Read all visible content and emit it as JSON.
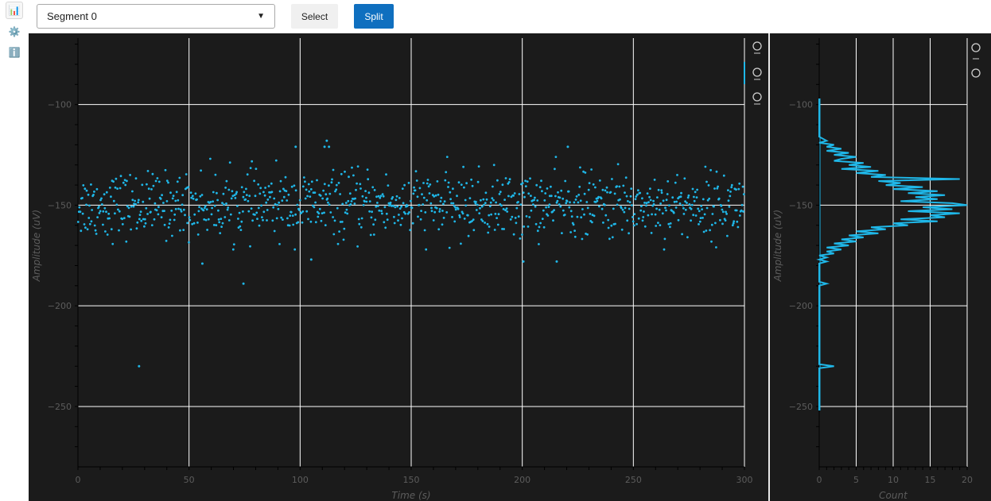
{
  "sidebar": {
    "items": [
      {
        "name": "chart",
        "glyph": "📊"
      },
      {
        "name": "settings",
        "glyph": "⚙️"
      },
      {
        "name": "info",
        "glyph": "ℹ️"
      }
    ]
  },
  "toolbar": {
    "segment_selected": "Segment 0",
    "select_label": "Select",
    "split_label": "Split"
  },
  "colors": {
    "plot_bg": "#1b1b1b",
    "grid": "#ffffff",
    "marker": "#1fb7e8",
    "tick_text": "#5c5c5c",
    "split_button": "#0f6fbf"
  },
  "plot_tools": {
    "scatter": [
      "wheel-zoom-icon",
      "box-zoom-icon",
      "reset-icon"
    ],
    "histogram": [
      "box-zoom-icon",
      "reset-icon"
    ]
  },
  "chart_data": [
    {
      "type": "scatter",
      "xlabel": "Time (s)",
      "ylabel": "Amplitude (uV)",
      "xlim": [
        0,
        300
      ],
      "ylim": [
        -280,
        -67
      ],
      "xticks": [
        0,
        50,
        100,
        150,
        200,
        250,
        300
      ],
      "yticks": [
        -100,
        -150,
        -200,
        -250
      ],
      "grid": true,
      "n_points": 1000,
      "center": -150,
      "spread": 8,
      "outliers": [
        {
          "x": 27.5,
          "y": -230
        },
        {
          "x": 74.5,
          "y": -189
        },
        {
          "x": 56.0,
          "y": -179
        },
        {
          "x": 112.0,
          "y": -118
        },
        {
          "x": 111.0,
          "y": -121
        },
        {
          "x": 113.0,
          "y": -121
        },
        {
          "x": 98.0,
          "y": -121
        },
        {
          "x": 220.5,
          "y": -121
        },
        {
          "x": 105.0,
          "y": -177
        },
        {
          "x": 200.5,
          "y": -178
        },
        {
          "x": 215.5,
          "y": -178
        }
      ]
    },
    {
      "type": "line",
      "orientation": "horizontal-histogram",
      "xlabel": "Count",
      "ylabel": "Amplitude (uV)",
      "xlim": [
        0,
        20
      ],
      "ylim": [
        -280,
        -67
      ],
      "xticks": [
        0,
        5,
        10,
        15,
        20
      ],
      "yticks": [
        -100,
        -150,
        -200,
        -250
      ],
      "grid": true,
      "bins": [
        [
          -97,
          0
        ],
        [
          -116,
          0
        ],
        [
          -118,
          1
        ],
        [
          -119,
          0
        ],
        [
          -120,
          2
        ],
        [
          -121,
          1
        ],
        [
          -122,
          3
        ],
        [
          -123,
          1
        ],
        [
          -124,
          4
        ],
        [
          -125,
          2
        ],
        [
          -126,
          5
        ],
        [
          -127,
          3
        ],
        [
          -128,
          2
        ],
        [
          -129,
          6
        ],
        [
          -130,
          4
        ],
        [
          -131,
          7
        ],
        [
          -132,
          3
        ],
        [
          -133,
          8
        ],
        [
          -134,
          5
        ],
        [
          -135,
          9
        ],
        [
          -136,
          7
        ],
        [
          -137,
          19
        ],
        [
          -138,
          8
        ],
        [
          -139,
          11
        ],
        [
          -140,
          9
        ],
        [
          -141,
          14
        ],
        [
          -142,
          10
        ],
        [
          -143,
          16
        ],
        [
          -144,
          12
        ],
        [
          -145,
          17
        ],
        [
          -146,
          13
        ],
        [
          -147,
          16
        ],
        [
          -148,
          11
        ],
        [
          -149,
          18
        ],
        [
          -150,
          20
        ],
        [
          -151,
          14
        ],
        [
          -152,
          18
        ],
        [
          -153,
          12
        ],
        [
          -154,
          19
        ],
        [
          -155,
          15
        ],
        [
          -156,
          17
        ],
        [
          -157,
          11
        ],
        [
          -158,
          16
        ],
        [
          -159,
          10
        ],
        [
          -160,
          12
        ],
        [
          -161,
          7
        ],
        [
          -162,
          9
        ],
        [
          -163,
          5
        ],
        [
          -164,
          8
        ],
        [
          -165,
          4
        ],
        [
          -166,
          6
        ],
        [
          -167,
          3
        ],
        [
          -168,
          5
        ],
        [
          -169,
          2
        ],
        [
          -170,
          4
        ],
        [
          -171,
          1
        ],
        [
          -172,
          3
        ],
        [
          -173,
          1
        ],
        [
          -174,
          2
        ],
        [
          -175,
          0
        ],
        [
          -176,
          1
        ],
        [
          -177,
          0
        ],
        [
          -178,
          1
        ],
        [
          -179,
          0
        ],
        [
          -188,
          0
        ],
        [
          -189,
          1
        ],
        [
          -190,
          0
        ],
        [
          -229,
          0
        ],
        [
          -230,
          2
        ],
        [
          -231,
          0
        ],
        [
          -252,
          0
        ]
      ]
    }
  ]
}
